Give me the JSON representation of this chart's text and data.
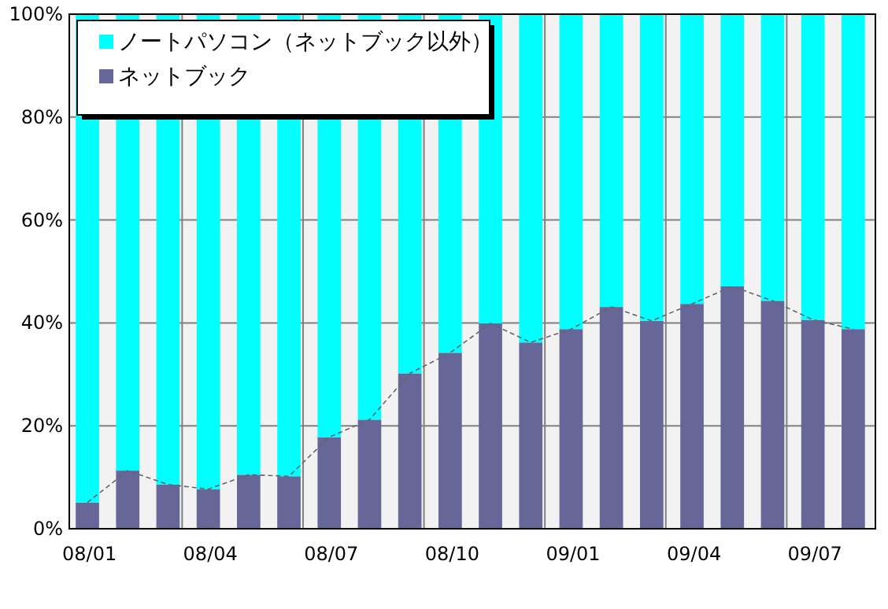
{
  "chart_data": {
    "type": "bar",
    "stacked": true,
    "categories": [
      "08/01",
      null,
      null,
      "08/04",
      null,
      null,
      "08/07",
      null,
      null,
      "08/10",
      null,
      null,
      "09/01",
      null,
      null,
      "09/04",
      null,
      null,
      "09/07",
      null
    ],
    "series": [
      {
        "name": "ネットブック",
        "color": "#666699",
        "values": [
          5.1,
          11.3,
          8.6,
          7.7,
          10.5,
          10.2,
          17.8,
          21.2,
          30.2,
          34.2,
          39.9,
          36.2,
          38.8,
          43.1,
          40.4,
          43.7,
          47.1,
          44.3,
          40.6,
          38.8
        ]
      },
      {
        "name": "ノートパソコン（ネットブック以外）",
        "color": "#00ffff",
        "values": [
          94.9,
          88.7,
          91.4,
          92.3,
          89.5,
          89.8,
          82.2,
          78.8,
          69.8,
          65.8,
          60.1,
          63.8,
          61.2,
          56.9,
          59.6,
          56.3,
          52.9,
          55.7,
          59.4,
          61.2
        ]
      },
      {
        "type": "line",
        "color": "#666666",
        "line_style": "dashed",
        "values": [
          5.1,
          11.3,
          8.6,
          7.7,
          10.5,
          10.2,
          17.8,
          21.2,
          30.2,
          34.2,
          39.9,
          36.2,
          38.8,
          43.1,
          40.4,
          43.7,
          47.1,
          44.3,
          40.6,
          38.8
        ]
      }
    ],
    "ylim": [
      0,
      100
    ],
    "yticks": [
      {
        "value": 0,
        "label": "0%"
      },
      {
        "value": 20,
        "label": "20%"
      },
      {
        "value": 40,
        "label": "40%"
      },
      {
        "value": 60,
        "label": "60%"
      },
      {
        "value": 80,
        "label": "80%"
      },
      {
        "value": 100,
        "label": "100%"
      }
    ],
    "grid": true,
    "legend": "top left"
  }
}
